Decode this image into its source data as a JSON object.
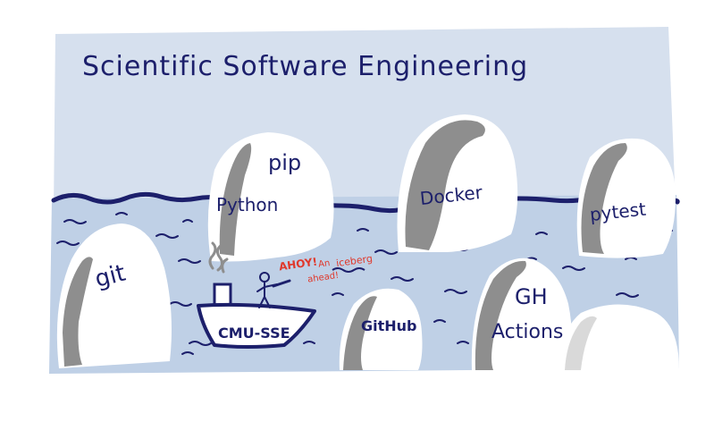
{
  "title": "Scientific Software Engineering",
  "icebergs": {
    "git": "git",
    "pip": "pip",
    "python": "Python",
    "docker": "Docker",
    "pytest": "pytest",
    "github": "GitHub",
    "gh_line1": "GH",
    "gh_line2": "Actions"
  },
  "boat": {
    "name": "CMU-SSE"
  },
  "speech": {
    "ahoy": "AHOY!",
    "an": "An",
    "ahead": "ahead!",
    "iceberg": "iceberg"
  },
  "colors": {
    "sky": "#d6e0ee",
    "water": "#bfd0e6",
    "ink": "#1c1f6b",
    "iceberg": "#ffffff",
    "shadow": "#8e8e8e",
    "alert": "#e0382b"
  }
}
